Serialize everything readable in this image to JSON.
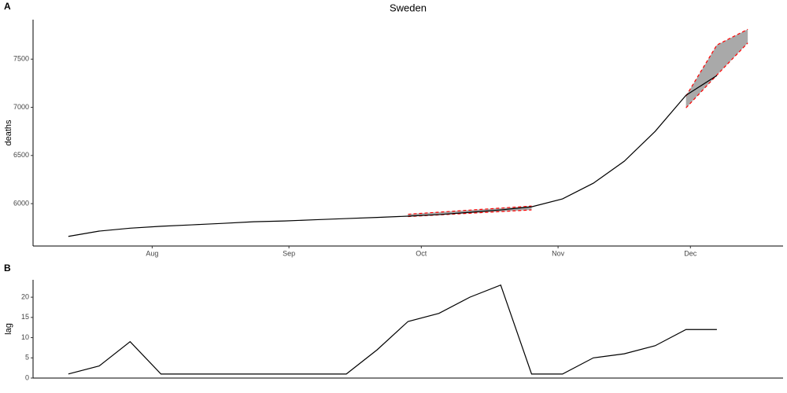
{
  "chart_data": [
    {
      "type": "line",
      "tag": "A",
      "title": "Sweden",
      "ylabel": "deaths",
      "x": [
        195,
        202,
        209,
        216,
        223,
        230,
        237,
        244,
        251,
        258,
        265,
        272,
        279,
        286,
        293,
        300,
        307,
        314,
        321,
        328,
        335,
        342
      ],
      "values": [
        5660,
        5715,
        5745,
        5765,
        5780,
        5795,
        5812,
        5820,
        5833,
        5845,
        5857,
        5870,
        5886,
        5910,
        5935,
        5967,
        6049,
        6212,
        6440,
        6750,
        7125,
        7330
      ],
      "color": "#000000",
      "ribbons": [
        {
          "x": [
            272,
            300
          ],
          "lower": [
            5866,
            5935
          ],
          "upper": [
            5890,
            5975
          ]
        },
        {
          "x": [
            335,
            342,
            349
          ],
          "lower": [
            6994,
            7335,
            7668
          ],
          "upper": [
            7117,
            7647,
            7810
          ]
        }
      ],
      "ribbon_fill": "#a9a9a9",
      "ribbon_edge": "#ff0000",
      "xlim": [
        187,
        357
      ],
      "ylim": [
        5560,
        7910
      ],
      "xticks": [
        {
          "value": 214,
          "label": "Aug"
        },
        {
          "value": 245,
          "label": "Sep"
        },
        {
          "value": 275,
          "label": "Oct"
        },
        {
          "value": 306,
          "label": "Nov"
        },
        {
          "value": 336,
          "label": "Dec"
        }
      ],
      "yticks": [
        6000,
        6500,
        7000,
        7500
      ]
    },
    {
      "type": "line",
      "tag": "B",
      "ylabel": "lag",
      "x": [
        195,
        202,
        209,
        216,
        223,
        230,
        237,
        244,
        251,
        258,
        265,
        272,
        279,
        286,
        293,
        300,
        307,
        314,
        321,
        328,
        335,
        342
      ],
      "values": [
        1,
        3,
        9,
        1,
        1,
        1,
        1,
        1,
        1,
        1,
        7,
        14,
        16,
        20,
        23,
        1,
        1,
        5,
        6,
        8,
        12,
        12
      ],
      "color": "#000000",
      "xlim": [
        187,
        357
      ],
      "ylim": [
        0,
        24.3
      ],
      "yticks": [
        0,
        5,
        10,
        15,
        20
      ]
    }
  ]
}
